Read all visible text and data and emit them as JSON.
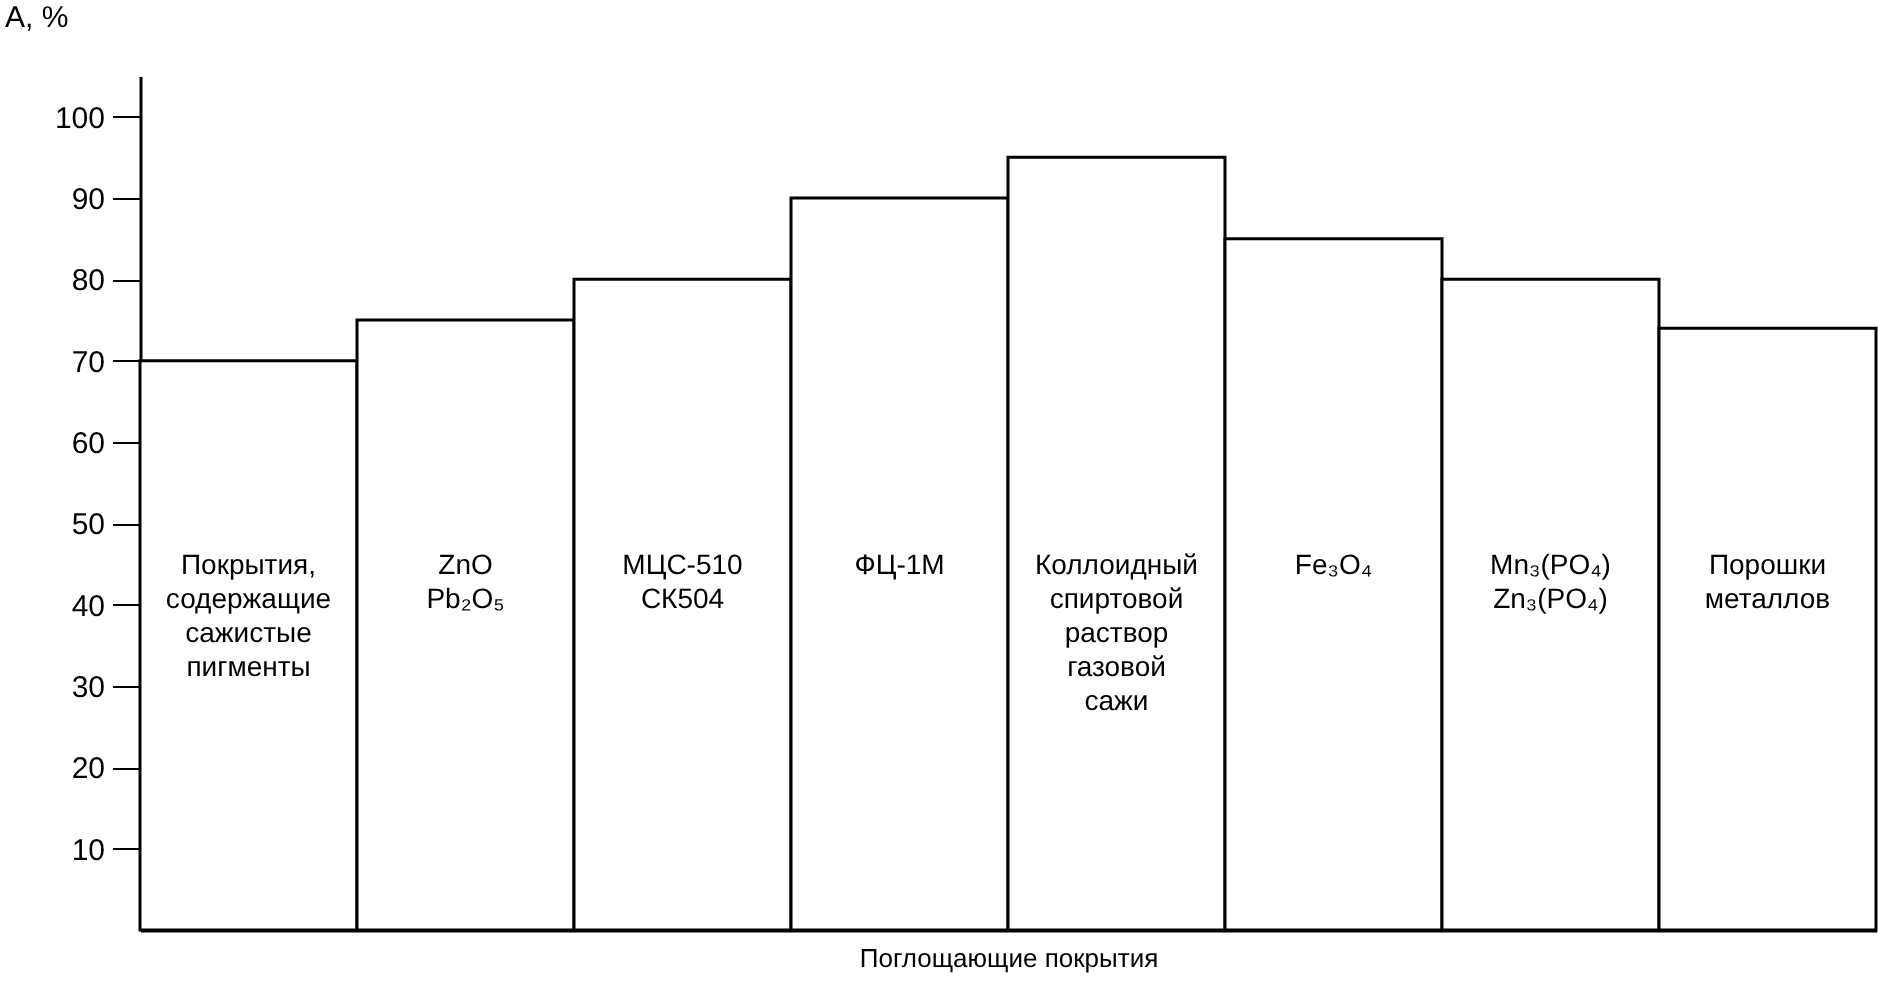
{
  "chart_data": {
    "type": "bar",
    "xlabel": "Поглощающие покрытия",
    "ylabel": "A, %",
    "categories": [
      "Покрытия,\nсодержащие\nсажистые\nпигменты",
      "ZnO\nPb₂O₅",
      "МЦС-510\nСК504",
      "ФЦ-1М",
      "Коллоидный\nспиртовой\nраствор\nгазовой\nсажи",
      "Fe₃O₄",
      "Mn₃(PO₄)\nZn₃(PO₄)",
      "Порошки\nметаллов"
    ],
    "values": [
      70,
      75,
      80,
      90,
      95,
      85,
      80,
      74
    ],
    "color": "#ffffff",
    "ylim": [
      0,
      105
    ],
    "yticks": [
      10,
      20,
      30,
      40,
      50,
      60,
      70,
      80,
      90,
      100
    ],
    "grid": false
  }
}
